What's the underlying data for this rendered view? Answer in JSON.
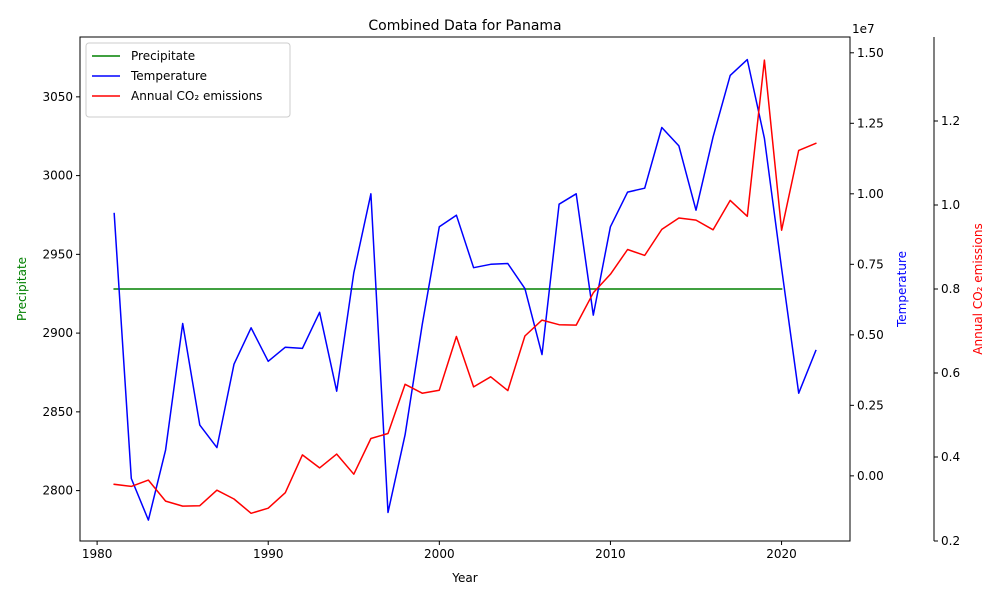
{
  "chart_data": {
    "type": "line",
    "title": "Combined Data for Panama",
    "xlabel": "Year",
    "xlim": [
      1979,
      2024
    ],
    "x_ticks": [
      1980,
      1990,
      2000,
      2010,
      2020
    ],
    "axes": {
      "left": {
        "label": "Precipitate",
        "color": "#008000",
        "ylim": [
          2768,
          3088
        ],
        "ticks": [
          2800,
          2850,
          2900,
          2950,
          3000,
          3050
        ],
        "offset": ""
      },
      "right1": {
        "label": "Temperature",
        "color": "#0000ff",
        "ylim": [
          -2310000,
          15560000
        ],
        "ticks": [
          0,
          2500000,
          5000000,
          7500000,
          10000000,
          12500000,
          15000000
        ],
        "tick_labels": [
          "0.00",
          "0.25",
          "0.50",
          "0.75",
          "1.00",
          "1.25",
          "1.50"
        ],
        "offset": "1e7"
      },
      "right2": {
        "label": "Annual CO₂ emissions",
        "color": "#ff0000",
        "ylim": [
          0.2,
          1.4
        ],
        "ticks": [
          0.2,
          0.4,
          0.6,
          0.8,
          1.0,
          1.2
        ],
        "tick_labels": [
          "0.2",
          "0.4",
          "0.6",
          "0.8",
          "1.0",
          "1.2"
        ],
        "offset": ""
      }
    },
    "legend": {
      "position": "top-left"
    },
    "series": [
      {
        "name": "Precipitate",
        "color": "#008000",
        "axis": "left",
        "x": [
          1981,
          2020
        ],
        "y": [
          2928,
          2928
        ]
      },
      {
        "name": "Temperature",
        "color": "#0000ff",
        "axis": "right1",
        "x": [
          1981,
          1982,
          1983,
          1984,
          1985,
          1986,
          1987,
          1988,
          1989,
          1990,
          1991,
          1992,
          1993,
          1994,
          1995,
          1996,
          1997,
          1998,
          1999,
          2000,
          2001,
          2002,
          2003,
          2004,
          2005,
          2006,
          2007,
          2008,
          2009,
          2010,
          2011,
          2012,
          2013,
          2014,
          2015,
          2016,
          2017,
          2018,
          2019,
          2020,
          2021,
          2022
        ],
        "y": [
          9300000,
          -95000,
          -1570000,
          920000,
          5400000,
          1800000,
          1000000,
          3960000,
          5250000,
          4060000,
          4560000,
          4520000,
          5800000,
          3000000,
          7200000,
          10000000,
          -1300000,
          1460000,
          5360000,
          8830000,
          9240000,
          7380000,
          7500000,
          7530000,
          6640000,
          4300000,
          9630000,
          10000000,
          5700000,
          8830000,
          10060000,
          10200000,
          12350000,
          11700000,
          9420000,
          12020000,
          14200000,
          14760000,
          11970000,
          7360000,
          2930000,
          4440000
        ]
      },
      {
        "name": "Annual CO₂ emissions",
        "color": "#ff0000",
        "axis": "right2",
        "x": [
          1981,
          1982,
          1983,
          1984,
          1985,
          1986,
          1987,
          1988,
          1989,
          1990,
          1991,
          1992,
          1993,
          1994,
          1995,
          1996,
          1997,
          1998,
          1999,
          2000,
          2001,
          2002,
          2003,
          2004,
          2005,
          2006,
          2007,
          2008,
          2009,
          2010,
          2011,
          2012,
          2013,
          2014,
          2015,
          2016,
          2017,
          2018,
          2019,
          2020,
          2021,
          2022
        ],
        "y": [
          0.335,
          0.33,
          0.345,
          0.295,
          0.283,
          0.284,
          0.321,
          0.3,
          0.266,
          0.278,
          0.315,
          0.405,
          0.374,
          0.407,
          0.359,
          0.444,
          0.456,
          0.573,
          0.552,
          0.559,
          0.687,
          0.567,
          0.591,
          0.558,
          0.688,
          0.726,
          0.715,
          0.714,
          0.791,
          0.835,
          0.894,
          0.88,
          0.942,
          0.969,
          0.964,
          0.941,
          1.011,
          0.973,
          1.345,
          0.94,
          1.13,
          1.147
        ]
      }
    ]
  }
}
